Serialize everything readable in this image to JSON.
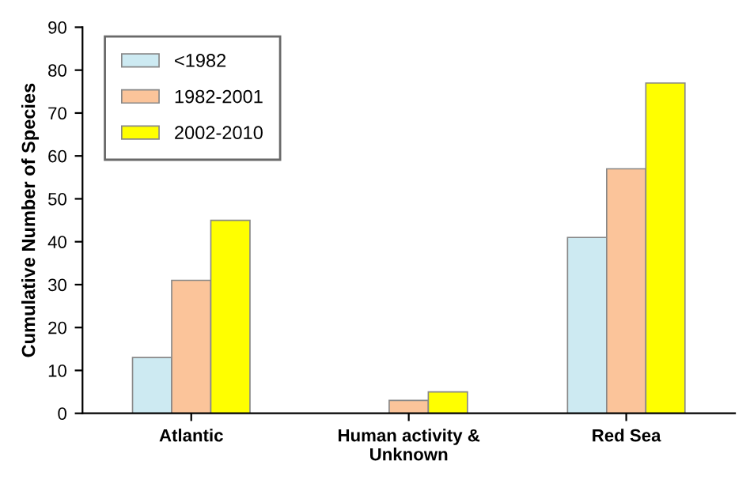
{
  "chart_data": {
    "type": "bar",
    "ylabel": "Cumulative Number of Species",
    "categories": [
      "Atlantic",
      "Human activity &\nUnknown",
      "Red Sea"
    ],
    "series": [
      {
        "name": "<1982",
        "color": "#cdeaf2",
        "values": [
          13,
          0,
          41
        ]
      },
      {
        "name": "1982-2001",
        "color": "#fbc49a",
        "values": [
          31,
          3,
          57
        ]
      },
      {
        "name": "2002-2010",
        "color": "#ffff00",
        "values": [
          45,
          5,
          77
        ]
      }
    ],
    "ylim": [
      0,
      90
    ],
    "yticks": [
      0,
      10,
      20,
      30,
      40,
      50,
      60,
      70,
      80,
      90
    ],
    "grid": false,
    "legend": "top left"
  }
}
